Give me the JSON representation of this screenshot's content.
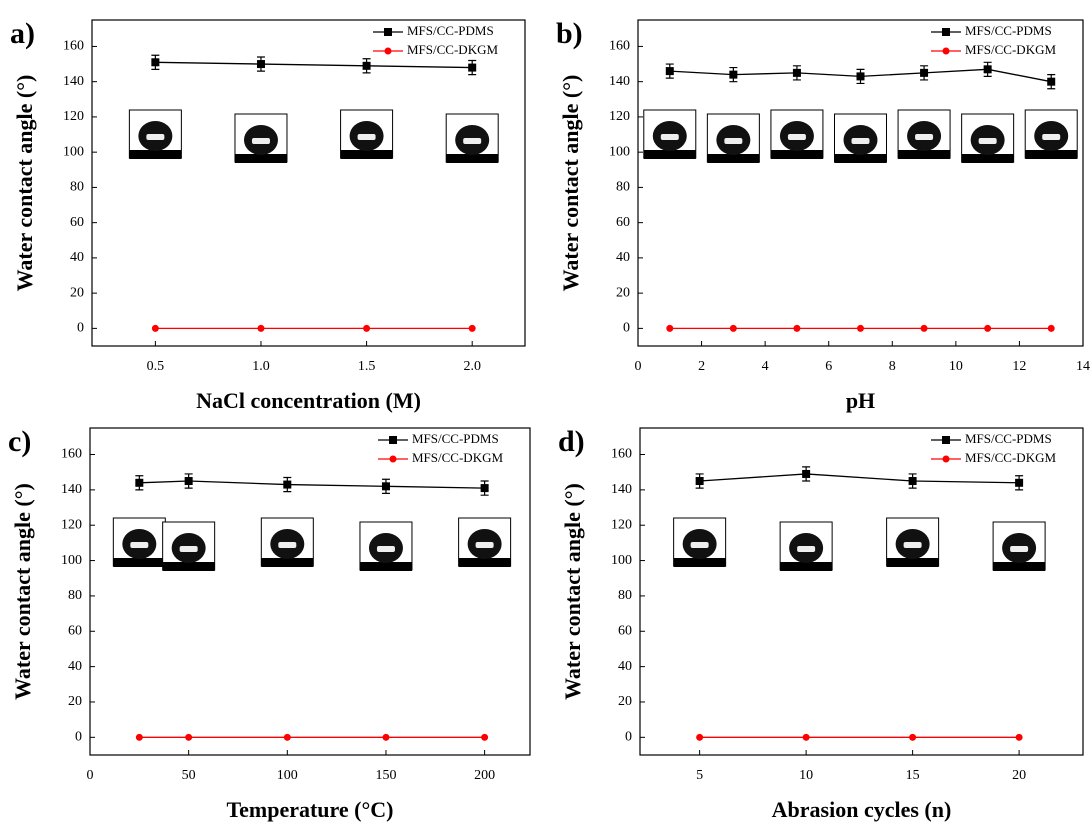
{
  "chart_data": [
    {
      "type": "line",
      "panel_label": "a)",
      "xlabel": "NaCl concentration (M)",
      "ylabel": "Water contact angle (°)",
      "x": [
        0.5,
        1.0,
        1.5,
        2.0
      ],
      "xlim": [
        0.2,
        2.25
      ],
      "xticks": [
        0.5,
        {
          "value": 1,
          "label": "1.0"
        },
        1.5,
        {
          "value": 2,
          "label": "2.0"
        }
      ],
      "ylim": [
        -10,
        175
      ],
      "yticks": [
        0,
        20,
        40,
        60,
        80,
        100,
        120,
        140,
        160
      ],
      "legend": "upper right",
      "series": [
        {
          "name": "MFS/CC-PDMS",
          "color": "#000000",
          "marker": "square",
          "values": [
            151,
            150,
            149,
            148
          ],
          "errors": [
            4,
            4,
            4,
            4
          ]
        },
        {
          "name": "MFS/CC-DKGM",
          "color": "#ff0000",
          "marker": "circle",
          "values": [
            0,
            0,
            0,
            0
          ]
        }
      ]
    },
    {
      "type": "line",
      "panel_label": "b)",
      "xlabel": "pH",
      "ylabel": "Water contact angle (°)",
      "x": [
        1,
        3,
        5,
        7,
        9,
        11,
        13
      ],
      "xlim": [
        0,
        14
      ],
      "xticks": [
        0,
        2,
        4,
        6,
        8,
        10,
        12,
        14
      ],
      "ylim": [
        -10,
        175
      ],
      "yticks": [
        0,
        20,
        40,
        60,
        80,
        100,
        120,
        140,
        160
      ],
      "legend": "upper right",
      "series": [
        {
          "name": "MFS/CC-PDMS",
          "color": "#000000",
          "marker": "square",
          "values": [
            146,
            144,
            145,
            143,
            145,
            147,
            140
          ],
          "errors": [
            4,
            4,
            4,
            4,
            4,
            4,
            4
          ]
        },
        {
          "name": "MFS/CC-DKGM",
          "color": "#ff0000",
          "marker": "circle",
          "values": [
            0,
            0,
            0,
            0,
            0,
            0,
            0
          ]
        }
      ]
    },
    {
      "type": "line",
      "panel_label": "c)",
      "xlabel": "Temperature (°C)",
      "ylabel": "Water contact angle (°)",
      "x": [
        25,
        50,
        100,
        150,
        200
      ],
      "xlim": [
        0,
        223
      ],
      "xticks": [
        0,
        50,
        100,
        150,
        200
      ],
      "ylim": [
        -10,
        175
      ],
      "yticks": [
        0,
        20,
        40,
        60,
        80,
        100,
        120,
        140,
        160
      ],
      "legend": "upper right",
      "series": [
        {
          "name": "MFS/CC-PDMS",
          "color": "#000000",
          "marker": "square",
          "values": [
            144,
            145,
            143,
            142,
            141
          ],
          "errors": [
            4,
            4,
            4,
            4,
            4
          ]
        },
        {
          "name": "MFS/CC-DKGM",
          "color": "#ff0000",
          "marker": "circle",
          "values": [
            0,
            0,
            0,
            0,
            0
          ]
        }
      ]
    },
    {
      "type": "line",
      "panel_label": "d)",
      "xlabel": "Abrasion cycles (n)",
      "ylabel": "Water contact angle (°)",
      "x": [
        5,
        10,
        15,
        20
      ],
      "xlim": [
        2.2,
        23
      ],
      "xticks": [
        5,
        10,
        15,
        20
      ],
      "ylim": [
        -10,
        175
      ],
      "yticks": [
        0,
        20,
        40,
        60,
        80,
        100,
        120,
        140,
        160
      ],
      "legend": "upper right",
      "series": [
        {
          "name": "MFS/CC-PDMS",
          "color": "#000000",
          "marker": "square",
          "values": [
            145,
            149,
            145,
            144
          ],
          "errors": [
            4,
            4,
            4,
            4
          ]
        },
        {
          "name": "MFS/CC-DKGM",
          "color": "#ff0000",
          "marker": "circle",
          "values": [
            0,
            0,
            0,
            0
          ]
        }
      ]
    }
  ]
}
